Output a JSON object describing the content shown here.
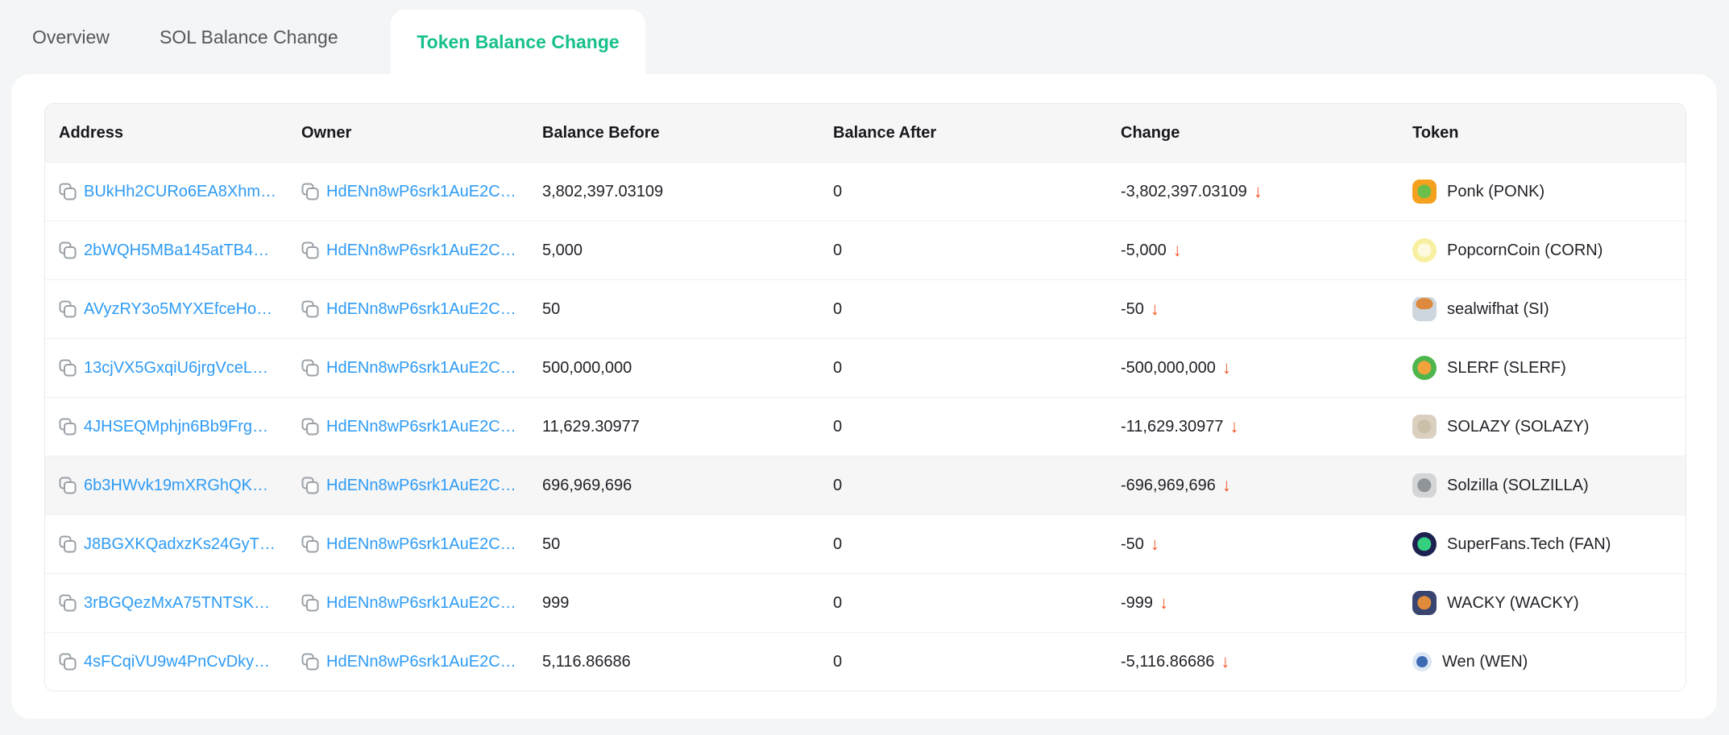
{
  "colors": {
    "page_bg": "#f4f5f6",
    "card_bg": "#ffffff",
    "accent_green": "#17c08c",
    "link_blue": "#2e9bf5",
    "change_down_orange": "#f4511e",
    "header_bg": "#f6f6f7",
    "highlight_row_bg": "#f6f6f7",
    "copy_icon_gray": "#9aa0a6"
  },
  "tabs": [
    {
      "label": "Overview",
      "active": false
    },
    {
      "label": "SOL Balance Change",
      "active": false
    },
    {
      "label": "Token Balance Change",
      "active": true
    }
  ],
  "table": {
    "columns": [
      "Address",
      "Owner",
      "Balance Before",
      "Balance After",
      "Change",
      "Token"
    ],
    "change_arrow": "↓",
    "rows": [
      {
        "address": "BUkHh2CURo6EA8Xhm…",
        "owner": "HdENn8wP6srk1AuE2C…",
        "balance_before": "3,802,397.03109",
        "balance_after": "0",
        "change": "-3,802,397.03109",
        "direction": "down",
        "highlighted": false,
        "token": {
          "label": "Ponk (PONK)",
          "icon": {
            "name": "ponk-token-icon",
            "shape": "rounded",
            "size": 30,
            "bg": "#f5a11d",
            "accent": "#6abf4b",
            "accent_pos": "center"
          }
        }
      },
      {
        "address": "2bWQH5MBa145atTB4…",
        "owner": "HdENn8wP6srk1AuE2C…",
        "balance_before": "5,000",
        "balance_after": "0",
        "change": "-5,000",
        "direction": "down",
        "highlighted": false,
        "token": {
          "label": "PopcornCoin (CORN)",
          "icon": {
            "name": "popcorncoin-token-icon",
            "shape": "circle",
            "size": 30,
            "bg": "#f7f0a0",
            "accent": "#fdfae0",
            "accent_pos": "center"
          }
        }
      },
      {
        "address": "AVyzRY3o5MYXEfceHo…",
        "owner": "HdENn8wP6srk1AuE2C…",
        "balance_before": "50",
        "balance_after": "0",
        "change": "-50",
        "direction": "down",
        "highlighted": false,
        "token": {
          "label": "sealwifhat (SI)",
          "icon": {
            "name": "sealwifhat-token-icon",
            "shape": "rounded",
            "size": 30,
            "bg": "#ccd6dc",
            "accent": "#dd8a3f",
            "accent_pos": "top"
          }
        }
      },
      {
        "address": "13cjVX5GxqiU6jrgVceL…",
        "owner": "HdENn8wP6srk1AuE2C…",
        "balance_before": "500,000,000",
        "balance_after": "0",
        "change": "-500,000,000",
        "direction": "down",
        "highlighted": false,
        "token": {
          "label": "SLERF (SLERF)",
          "icon": {
            "name": "slerf-token-icon",
            "shape": "circle",
            "size": 30,
            "bg": "#4fb54d",
            "accent": "#f2a33c",
            "accent_pos": "center"
          }
        }
      },
      {
        "address": "4JHSEQMphjn6Bb9Frg…",
        "owner": "HdENn8wP6srk1AuE2C…",
        "balance_before": "11,629.30977",
        "balance_after": "0",
        "change": "-11,629.30977",
        "direction": "down",
        "highlighted": false,
        "token": {
          "label": "SOLAZY (SOLAZY)",
          "icon": {
            "name": "solazy-token-icon",
            "shape": "rounded",
            "size": 30,
            "bg": "#d9d0c0",
            "accent": "#cabfa9",
            "accent_pos": "center"
          }
        }
      },
      {
        "address": "6b3HWvk19mXRGhQK…",
        "owner": "HdENn8wP6srk1AuE2C…",
        "balance_before": "696,969,696",
        "balance_after": "0",
        "change": "-696,969,696",
        "direction": "down",
        "highlighted": true,
        "token": {
          "label": "Solzilla (SOLZILLA)",
          "icon": {
            "name": "solzilla-token-icon",
            "shape": "rounded",
            "size": 30,
            "bg": "#d3d5d7",
            "accent": "#8f9498",
            "accent_pos": "center"
          }
        }
      },
      {
        "address": "J8BGXKQadxzKs24GyT…",
        "owner": "HdENn8wP6srk1AuE2C…",
        "balance_before": "50",
        "balance_after": "0",
        "change": "-50",
        "direction": "down",
        "highlighted": false,
        "token": {
          "label": "SuperFans.Tech (FAN)",
          "icon": {
            "name": "superfans-token-icon",
            "shape": "circle",
            "size": 30,
            "bg": "#1d2150",
            "accent": "#35d07f",
            "accent_pos": "center"
          }
        }
      },
      {
        "address": "3rBGQezMxA75TNTSK…",
        "owner": "HdENn8wP6srk1AuE2C…",
        "balance_before": "999",
        "balance_after": "0",
        "change": "-999",
        "direction": "down",
        "highlighted": false,
        "token": {
          "label": "WACKY (WACKY)",
          "icon": {
            "name": "wacky-token-icon",
            "shape": "rounded",
            "size": 30,
            "bg": "#39456f",
            "accent": "#e08a3c",
            "accent_pos": "center"
          }
        }
      },
      {
        "address": "4sFCqiVU9w4PnCvDky…",
        "owner": "HdENn8wP6srk1AuE2C…",
        "balance_before": "5,116.86686",
        "balance_after": "0",
        "change": "-5,116.86686",
        "direction": "down",
        "highlighted": false,
        "token": {
          "label": "Wen (WEN)",
          "icon": {
            "name": "wen-token-icon",
            "shape": "circle",
            "size": 24,
            "bg": "#dbe7f5",
            "accent": "#3d6bb3",
            "accent_pos": "center"
          }
        }
      }
    ]
  }
}
